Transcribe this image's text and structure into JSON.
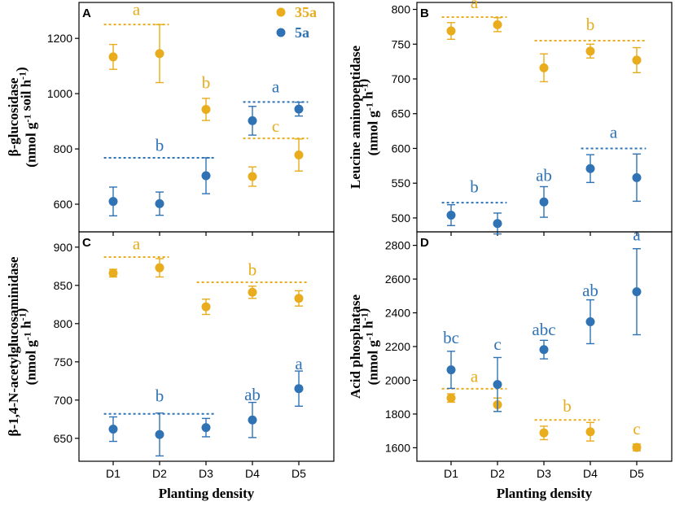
{
  "colors": {
    "series_35a": "#E8AC1C",
    "series_5a": "#2F73B5",
    "axis": "#000000"
  },
  "shared": {
    "x_axis_title": "Planting density",
    "legend": [
      {
        "key": "35a",
        "label": "35a",
        "color": "#E8AC1C"
      },
      {
        "key": "5a",
        "label": "5a",
        "color": "#2F73B5"
      }
    ]
  },
  "chart_data": [
    {
      "panel": "A",
      "type": "scatter",
      "ylabel_lines": [
        "β-glucosidase",
        "(nmol g-1 soil h-1)"
      ],
      "categories": [
        "D1",
        "D2",
        "D3",
        "D4",
        "D5"
      ],
      "ylim": [
        500,
        1330
      ],
      "yticks": [
        600,
        800,
        1000,
        1200
      ],
      "series": [
        {
          "name": "35a",
          "values": [
            1133,
            1145,
            943,
            700,
            778
          ],
          "errors": [
            45,
            105,
            40,
            35,
            58
          ]
        },
        {
          "name": "5a",
          "values": [
            610,
            602,
            703,
            902,
            944
          ],
          "errors": [
            52,
            42,
            65,
            52,
            25
          ]
        }
      ],
      "letters": [
        {
          "text": "a",
          "series": "35a",
          "x": 1.5,
          "y": 1285
        },
        {
          "text": "b",
          "series": "35a",
          "x": 3,
          "y": 1020
        },
        {
          "text": "c",
          "series": "35a",
          "x": 4.5,
          "y": 862
        },
        {
          "text": "b",
          "series": "5a",
          "x": 2,
          "y": 793
        },
        {
          "text": "a",
          "series": "5a",
          "x": 4.5,
          "y": 1005
        }
      ],
      "brackets": [
        {
          "series": "35a",
          "x_from": 0.8,
          "x_to": 2.2,
          "y": 1250
        },
        {
          "series": "35a",
          "x_from": 3.8,
          "x_to": 5.2,
          "y": 838
        },
        {
          "series": "5a",
          "x_from": 0.8,
          "x_to": 3.2,
          "y": 768
        },
        {
          "series": "5a",
          "x_from": 3.8,
          "x_to": 5.2,
          "y": 970
        }
      ],
      "show_legend": true
    },
    {
      "panel": "B",
      "type": "scatter",
      "ylabel_lines": [
        "Leucine aminopeptidase",
        "(nmol g-1 h-1)"
      ],
      "categories": [
        "D1",
        "D2",
        "D3",
        "D4",
        "D5"
      ],
      "ylim": [
        480,
        810
      ],
      "yticks": [
        500,
        550,
        600,
        650,
        700,
        750,
        800
      ],
      "series": [
        {
          "name": "35a",
          "values": [
            769,
            778,
            716,
            740,
            727
          ],
          "errors": [
            12,
            10,
            20,
            10,
            18
          ]
        },
        {
          "name": "5a",
          "values": [
            504,
            492,
            523,
            571,
            558
          ],
          "errors": [
            15,
            15,
            22,
            20,
            34
          ]
        }
      ],
      "letters": [
        {
          "text": "a",
          "series": "35a",
          "x": 1.5,
          "y": 802
        },
        {
          "text": "b",
          "series": "35a",
          "x": 4,
          "y": 770
        },
        {
          "text": "b",
          "series": "5a",
          "x": 1.5,
          "y": 537
        },
        {
          "text": "ab",
          "series": "5a",
          "x": 3,
          "y": 553
        },
        {
          "text": "a",
          "series": "5a",
          "x": 4.5,
          "y": 615
        }
      ],
      "brackets": [
        {
          "series": "35a",
          "x_from": 0.8,
          "x_to": 2.2,
          "y": 789
        },
        {
          "series": "35a",
          "x_from": 2.8,
          "x_to": 5.2,
          "y": 755
        },
        {
          "series": "5a",
          "x_from": 0.8,
          "x_to": 2.2,
          "y": 522
        },
        {
          "series": "5a",
          "x_from": 3.8,
          "x_to": 5.2,
          "y": 600
        }
      ],
      "show_legend": false
    },
    {
      "panel": "C",
      "type": "scatter",
      "ylabel_lines": [
        "β-1,4-N-acetylglucosaminidase",
        "(nmol g-1 h-1)"
      ],
      "categories": [
        "D1",
        "D2",
        "D3",
        "D4",
        "D5"
      ],
      "ylim": [
        620,
        920
      ],
      "yticks": [
        650,
        700,
        750,
        800,
        850,
        900
      ],
      "series": [
        {
          "name": "35a",
          "values": [
            866,
            873,
            822,
            841,
            833
          ],
          "errors": [
            5,
            12,
            10,
            8,
            10
          ]
        },
        {
          "name": "5a",
          "values": [
            662,
            655,
            664,
            674,
            715
          ],
          "errors": [
            16,
            28,
            12,
            23,
            23
          ]
        }
      ],
      "letters": [
        {
          "text": "a",
          "series": "35a",
          "x": 1.5,
          "y": 897
        },
        {
          "text": "b",
          "series": "35a",
          "x": 4,
          "y": 863
        },
        {
          "text": "b",
          "series": "5a",
          "x": 2,
          "y": 698
        },
        {
          "text": "ab",
          "series": "5a",
          "x": 4,
          "y": 700
        },
        {
          "text": "a",
          "series": "5a",
          "x": 5,
          "y": 740
        }
      ],
      "brackets": [
        {
          "series": "35a",
          "x_from": 0.8,
          "x_to": 2.2,
          "y": 887
        },
        {
          "series": "35a",
          "x_from": 2.8,
          "x_to": 5.2,
          "y": 854
        },
        {
          "series": "5a",
          "x_from": 0.8,
          "x_to": 3.2,
          "y": 682
        }
      ],
      "show_legend": false
    },
    {
      "panel": "D",
      "type": "scatter",
      "ylabel_lines": [
        "Acid phosphatase",
        "(nmol g-1 h-1)"
      ],
      "categories": [
        "D1",
        "D2",
        "D3",
        "D4",
        "D5"
      ],
      "ylim": [
        1520,
        2880
      ],
      "yticks": [
        1600,
        1800,
        2000,
        2200,
        2400,
        2600,
        2800
      ],
      "series": [
        {
          "name": "35a",
          "values": [
            1895,
            1855,
            1688,
            1695,
            1602
          ],
          "errors": [
            25,
            40,
            40,
            55,
            20
          ]
        },
        {
          "name": "5a",
          "values": [
            2062,
            1975,
            2182,
            2347,
            2525
          ],
          "errors": [
            110,
            160,
            55,
            130,
            255
          ]
        }
      ],
      "letters": [
        {
          "text": "a",
          "series": "35a",
          "x": 1.5,
          "y": 1990
        },
        {
          "text": "b",
          "series": "35a",
          "x": 3.5,
          "y": 1815
        },
        {
          "text": "c",
          "series": "35a",
          "x": 5,
          "y": 1680
        },
        {
          "text": "bc",
          "series": "5a",
          "x": 1,
          "y": 2220
        },
        {
          "text": "c",
          "series": "5a",
          "x": 2,
          "y": 2180
        },
        {
          "text": "abc",
          "series": "5a",
          "x": 3,
          "y": 2268
        },
        {
          "text": "ab",
          "series": "5a",
          "x": 4,
          "y": 2500
        },
        {
          "text": "a",
          "series": "5a",
          "x": 5,
          "y": 2830
        }
      ],
      "brackets": [
        {
          "series": "35a",
          "x_from": 0.8,
          "x_to": 2.2,
          "y": 1950
        },
        {
          "series": "35a",
          "x_from": 2.8,
          "x_to": 4.2,
          "y": 1765
        }
      ],
      "show_legend": false
    }
  ]
}
